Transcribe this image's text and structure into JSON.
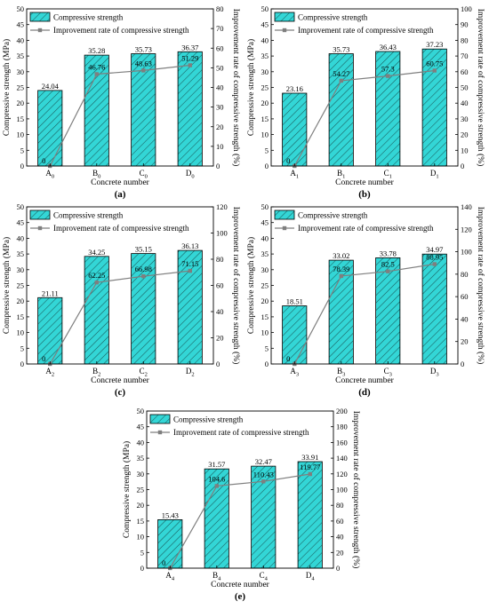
{
  "legend": {
    "bar_label": "Compressive strength",
    "line_label": "Improvement rate of compressive strength"
  },
  "colors": {
    "bar_fill": "#33d6d6",
    "bar_hatch": "#1a5c5c",
    "line": "#7f7f7f",
    "axis": "#000000"
  },
  "chart_data": [
    {
      "type": "bar",
      "panel_label": "(a)",
      "categories": [
        {
          "base": "A",
          "sub": "0"
        },
        {
          "base": "B",
          "sub": "0"
        },
        {
          "base": "C",
          "sub": "0"
        },
        {
          "base": "D",
          "sub": "0"
        }
      ],
      "series": [
        {
          "name": "Compressive strength",
          "axis": "left",
          "values": [
            24.04,
            35.28,
            35.73,
            36.37
          ],
          "labels": [
            "24.04",
            "35.28",
            "35.73",
            "36.37"
          ]
        },
        {
          "name": "Improvement rate of compressive strength",
          "axis": "right",
          "values": [
            0,
            46.76,
            48.63,
            51.29
          ],
          "labels": [
            "0",
            "46.76",
            "48.63",
            "51.29"
          ]
        }
      ],
      "xlabel": "Concrete number",
      "ylabel": "Compressive strength (MPa)",
      "y2label": "Improvement rate of compressive strength (%)",
      "ylim": [
        0,
        50
      ],
      "yticks": [
        0,
        5,
        10,
        15,
        20,
        25,
        30,
        35,
        40,
        45,
        50
      ],
      "y2lim": [
        0,
        80
      ],
      "y2ticks": [
        0,
        10,
        20,
        30,
        40,
        50,
        60,
        70,
        80
      ],
      "legend_position": "top-left"
    },
    {
      "type": "bar",
      "panel_label": "(b)",
      "categories": [
        {
          "base": "A",
          "sub": "1"
        },
        {
          "base": "B",
          "sub": "1"
        },
        {
          "base": "C",
          "sub": "1"
        },
        {
          "base": "D",
          "sub": "1"
        }
      ],
      "series": [
        {
          "name": "Compressive strength",
          "axis": "left",
          "values": [
            23.16,
            35.73,
            36.43,
            37.23
          ],
          "labels": [
            "23.16",
            "35.73",
            "36.43",
            "37.23"
          ]
        },
        {
          "name": "Improvement rate of compressive strength",
          "axis": "right",
          "values": [
            0,
            54.27,
            57.3,
            60.75
          ],
          "labels": [
            "0",
            "54.27",
            "57.3",
            "60.75"
          ]
        }
      ],
      "xlabel": "Concrete number",
      "ylabel": "Compressive strength (MPa)",
      "y2label": "Improvement rate of compressive strength (%)",
      "ylim": [
        0,
        50
      ],
      "yticks": [
        0,
        5,
        10,
        15,
        20,
        25,
        30,
        35,
        40,
        45,
        50
      ],
      "y2lim": [
        0,
        100
      ],
      "y2ticks": [
        0,
        10,
        20,
        30,
        40,
        50,
        60,
        70,
        80,
        90,
        100
      ],
      "legend_position": "top-left"
    },
    {
      "type": "bar",
      "panel_label": "(c)",
      "categories": [
        {
          "base": "A",
          "sub": "2"
        },
        {
          "base": "B",
          "sub": "2"
        },
        {
          "base": "C",
          "sub": "2"
        },
        {
          "base": "D",
          "sub": "2"
        }
      ],
      "series": [
        {
          "name": "Compressive strength",
          "axis": "left",
          "values": [
            21.11,
            34.25,
            35.15,
            36.13
          ],
          "labels": [
            "21.11",
            "34.25",
            "35.15",
            "36.13"
          ]
        },
        {
          "name": "Improvement rate of compressive strength",
          "axis": "right",
          "values": [
            0,
            62.25,
            66.98,
            71.15
          ],
          "labels": [
            "0",
            "62.25",
            "66.98",
            "71.15"
          ]
        }
      ],
      "xlabel": "Concrete number",
      "ylabel": "Compressive strength (MPa)",
      "y2label": "Improvement rate of compressive strength (%)",
      "ylim": [
        0,
        50
      ],
      "yticks": [
        0,
        5,
        10,
        15,
        20,
        25,
        30,
        35,
        40,
        45,
        50
      ],
      "y2lim": [
        0,
        120
      ],
      "y2ticks": [
        0,
        20,
        40,
        60,
        80,
        100,
        120
      ],
      "legend_position": "top-left"
    },
    {
      "type": "bar",
      "panel_label": "(d)",
      "categories": [
        {
          "base": "A",
          "sub": "3"
        },
        {
          "base": "B",
          "sub": "3"
        },
        {
          "base": "C",
          "sub": "3"
        },
        {
          "base": "D",
          "sub": "3"
        }
      ],
      "series": [
        {
          "name": "Compressive strength",
          "axis": "left",
          "values": [
            18.51,
            33.02,
            33.78,
            34.97
          ],
          "labels": [
            "18.51",
            "33.02",
            "33.78",
            "34.97"
          ]
        },
        {
          "name": "Improvement rate of compressive strength",
          "axis": "right",
          "values": [
            0,
            78.39,
            82.5,
            88.95
          ],
          "labels": [
            "0",
            "78.39",
            "82.5",
            "88.95"
          ]
        }
      ],
      "xlabel": "Concrete number",
      "ylabel": "Compressive strength (MPa)",
      "y2label": "Improvement rate of compressive strength (%)",
      "ylim": [
        0,
        50
      ],
      "yticks": [
        0,
        5,
        10,
        15,
        20,
        25,
        30,
        35,
        40,
        45,
        50
      ],
      "y2lim": [
        0,
        140
      ],
      "y2ticks": [
        0,
        20,
        40,
        60,
        80,
        100,
        120,
        140
      ],
      "legend_position": "top-left"
    },
    {
      "type": "bar",
      "panel_label": "(e)",
      "categories": [
        {
          "base": "A",
          "sub": "4"
        },
        {
          "base": "B",
          "sub": "4"
        },
        {
          "base": "C",
          "sub": "4"
        },
        {
          "base": "D",
          "sub": "4"
        }
      ],
      "series": [
        {
          "name": "Compressive strength",
          "axis": "left",
          "values": [
            15.43,
            31.57,
            32.47,
            33.91
          ],
          "labels": [
            "15.43",
            "31.57",
            "32.47",
            "33.91"
          ]
        },
        {
          "name": "Improvement rate of compressive strength",
          "axis": "right",
          "values": [
            0,
            104.6,
            110.43,
            119.77
          ],
          "labels": [
            "0",
            "104.6",
            "110.43",
            "119.77"
          ]
        }
      ],
      "xlabel": "Concrete number",
      "ylabel": "Compressive strength (MPa)",
      "y2label": "Improvement rate of compressive strength (%)",
      "ylim": [
        0,
        50
      ],
      "yticks": [
        0,
        5,
        10,
        15,
        20,
        25,
        30,
        35,
        40,
        45,
        50
      ],
      "y2lim": [
        0,
        200
      ],
      "y2ticks": [
        0,
        20,
        40,
        60,
        80,
        100,
        120,
        140,
        160,
        180,
        200
      ],
      "legend_position": "top-left"
    }
  ]
}
